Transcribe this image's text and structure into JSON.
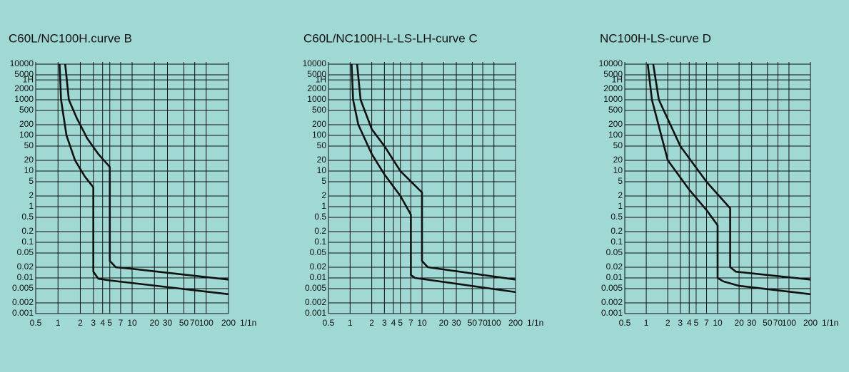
{
  "chart_data": [
    {
      "type": "line",
      "title": "C60L/NC100H.curve B",
      "xlabel": "1/1n",
      "log_x": true,
      "log_y": true,
      "grid": true,
      "xlim": [
        0.5,
        200
      ],
      "xticks": [
        0.5,
        1,
        2,
        3,
        4,
        5,
        7,
        10,
        20,
        30,
        50,
        70,
        100,
        200
      ],
      "ylim": [
        0.001,
        10000
      ],
      "yticks": [
        10000,
        5000,
        {
          "value": 3600,
          "label": "1H"
        },
        2000,
        1000,
        500,
        200,
        100,
        50,
        20,
        10,
        5,
        2,
        1,
        0.5,
        0.2,
        0.1,
        0.05,
        0.02,
        0.01,
        0.005,
        0.002,
        0.001
      ],
      "series": [
        {
          "color": "#111111",
          "x": [
            1.05,
            1.1,
            1.3,
            1.7,
            2.3,
            3,
            3,
            3.5,
            5,
            200
          ],
          "values": [
            10000,
            1000,
            100,
            20,
            7,
            3.5,
            0.015,
            0.0095,
            0.0085,
            0.0035
          ]
        },
        {
          "color": "#111111",
          "x": [
            1.25,
            1.4,
            1.8,
            2.5,
            3.5,
            5,
            5,
            6,
            10,
            200
          ],
          "values": [
            10000,
            1000,
            300,
            80,
            30,
            13,
            0.03,
            0.02,
            0.018,
            0.009
          ]
        }
      ]
    },
    {
      "type": "line",
      "title": "C60L/NC100H-L-LS-LH-curve C",
      "xlabel": "1/1n",
      "log_x": true,
      "log_y": true,
      "grid": true,
      "xlim": [
        0.5,
        200
      ],
      "xticks": [
        0.5,
        1,
        2,
        3,
        4,
        5,
        7,
        10,
        20,
        30,
        50,
        70,
        100,
        200
      ],
      "ylim": [
        0.001,
        10000
      ],
      "yticks": [
        10000,
        5000,
        {
          "value": 3600,
          "label": "1H"
        },
        2000,
        1000,
        500,
        200,
        100,
        50,
        20,
        10,
        5,
        2,
        1,
        0.5,
        0.2,
        0.1,
        0.05,
        0.02,
        0.01,
        0.005,
        0.002,
        0.001
      ],
      "series": [
        {
          "color": "#111111",
          "x": [
            1.05,
            1.1,
            1.3,
            2,
            3,
            5,
            7,
            7,
            8,
            200
          ],
          "values": [
            10000,
            1000,
            200,
            30,
            8,
            2,
            0.6,
            0.012,
            0.01,
            0.004
          ]
        },
        {
          "color": "#111111",
          "x": [
            1.25,
            1.4,
            2,
            3,
            5,
            10,
            10,
            12,
            200
          ],
          "values": [
            10000,
            1000,
            150,
            50,
            10,
            2.5,
            0.03,
            0.02,
            0.009
          ]
        }
      ]
    },
    {
      "type": "line",
      "title": "NC100H-LS-curve D",
      "xlabel": "1/1n",
      "log_x": true,
      "log_y": true,
      "grid": true,
      "xlim": [
        0.5,
        200
      ],
      "xticks": [
        0.5,
        1,
        2,
        3,
        4,
        5,
        7,
        10,
        20,
        30,
        50,
        70,
        100,
        200
      ],
      "ylim": [
        0.001,
        10000
      ],
      "yticks": [
        10000,
        5000,
        {
          "value": 3600,
          "label": "1H"
        },
        2000,
        1000,
        500,
        200,
        100,
        50,
        20,
        10,
        5,
        2,
        1,
        0.5,
        0.2,
        0.1,
        0.05,
        0.02,
        0.01,
        0.005,
        0.002,
        0.001
      ],
      "series": [
        {
          "color": "#111111",
          "x": [
            1.05,
            1.2,
            2,
            4,
            7,
            10,
            10,
            12,
            20,
            200
          ],
          "values": [
            10000,
            1000,
            20,
            3,
            0.8,
            0.3,
            0.01,
            0.008,
            0.006,
            0.0035
          ]
        },
        {
          "color": "#111111",
          "x": [
            1.25,
            1.5,
            3,
            7,
            15,
            15,
            18,
            200
          ],
          "values": [
            10000,
            1000,
            50,
            5,
            0.9,
            0.02,
            0.015,
            0.009
          ]
        }
      ]
    }
  ]
}
